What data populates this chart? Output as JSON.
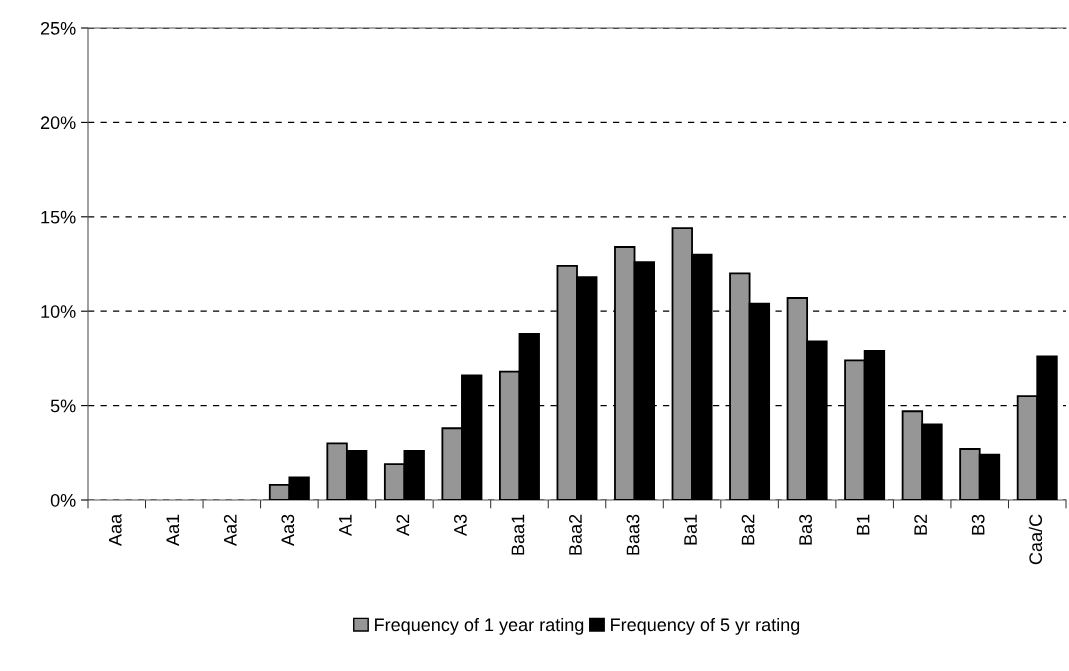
{
  "chart_data": {
    "type": "bar",
    "categories": [
      "Aaa",
      "Aa1",
      "Aa2",
      "Aa3",
      "A1",
      "A2",
      "A3",
      "Baa1",
      "Baa2",
      "Baa3",
      "Ba1",
      "Ba2",
      "Ba3",
      "B1",
      "B2",
      "B3",
      "Caa/C"
    ],
    "series": [
      {
        "name": "Frequency of 1 year rating",
        "color": "#969696",
        "values": [
          0,
          0,
          0,
          0.8,
          3.0,
          1.9,
          3.8,
          6.8,
          12.4,
          13.4,
          14.4,
          12.0,
          10.7,
          7.4,
          4.7,
          2.7,
          5.5
        ]
      },
      {
        "name": "Frequency of 5 yr rating",
        "color": "#000000",
        "values": [
          0,
          0,
          0,
          1.2,
          2.6,
          2.6,
          6.6,
          8.8,
          11.8,
          12.6,
          13.0,
          10.4,
          8.4,
          7.9,
          4.0,
          2.4,
          7.6
        ]
      }
    ],
    "ylim": [
      0,
      25
    ],
    "yticks": [
      {
        "value": 0,
        "label": "0%"
      },
      {
        "value": 5,
        "label": "5%"
      },
      {
        "value": 10,
        "label": "10%"
      },
      {
        "value": 15,
        "label": "15%"
      },
      {
        "value": 20,
        "label": "20%"
      },
      {
        "value": 25,
        "label": "25%"
      }
    ],
    "grid": "y",
    "legend": "bottom"
  }
}
